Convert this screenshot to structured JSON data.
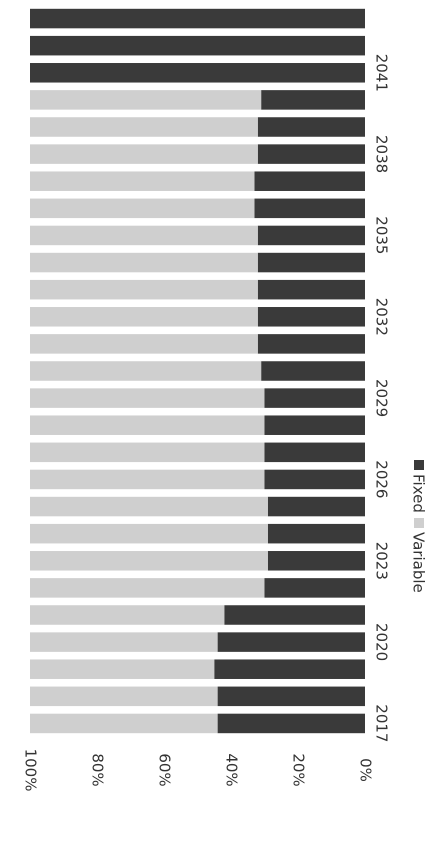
{
  "chart_data": {
    "type": "bar",
    "stacked": true,
    "percent": true,
    "orientation": "vertical-rotated",
    "categories": [
      "2017",
      "2018",
      "2019",
      "2020",
      "2021",
      "2022",
      "2023",
      "2024",
      "2025",
      "2026",
      "2027",
      "2028",
      "2029",
      "2030",
      "2031",
      "2032",
      "2033",
      "2034",
      "2035",
      "2036",
      "2037",
      "2038",
      "2039",
      "2040",
      "2041",
      "2042",
      "2043"
    ],
    "series": [
      {
        "name": "Fixed",
        "color": "#3a3a3a",
        "values": [
          44,
          44,
          45,
          44,
          42,
          30,
          29,
          29,
          29,
          30,
          30,
          30,
          30,
          31,
          32,
          32,
          32,
          32,
          32,
          33,
          33,
          32,
          32,
          31,
          100,
          100,
          100
        ]
      },
      {
        "name": "Variable",
        "color": "#cfcfcf",
        "values": [
          56,
          56,
          55,
          56,
          58,
          70,
          71,
          71,
          71,
          70,
          70,
          70,
          70,
          69,
          68,
          68,
          68,
          68,
          68,
          67,
          67,
          68,
          68,
          69,
          0,
          0,
          0
        ]
      }
    ],
    "category_labels": [
      "2017",
      "2020",
      "2023",
      "2026",
      "2029",
      "2032",
      "2035",
      "2038",
      "2041"
    ],
    "yticks": [
      "0%",
      "20%",
      "40%",
      "60%",
      "80%",
      "100%"
    ],
    "ylim": [
      0,
      100
    ],
    "legend_position": "right"
  }
}
